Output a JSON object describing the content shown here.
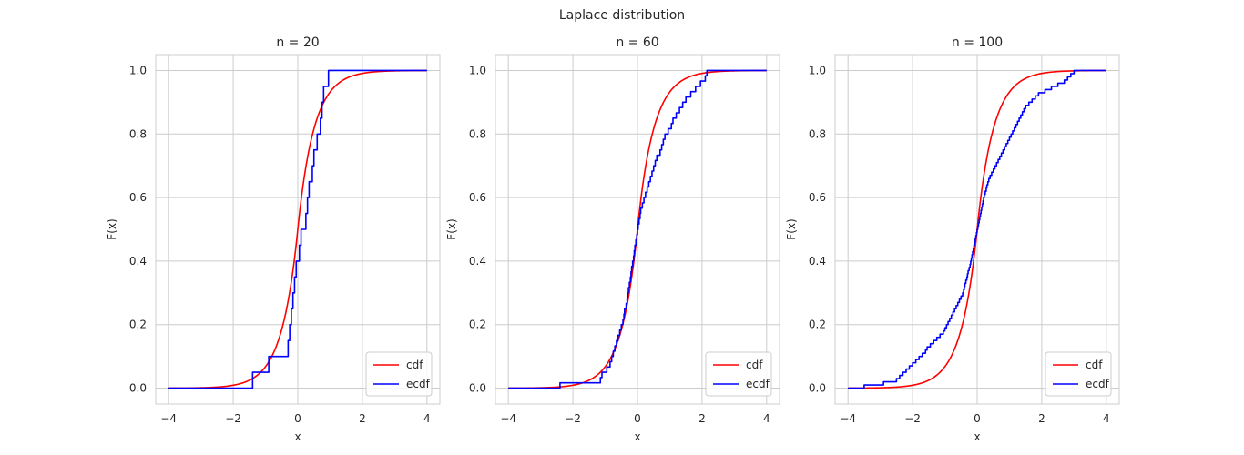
{
  "figure": {
    "title": "Laplace distribution"
  },
  "chart_data": [
    {
      "type": "line",
      "title": "n = 20",
      "xlabel": "x",
      "ylabel": "F(x)",
      "xlim": [
        -4.4,
        4.4
      ],
      "ylim": [
        -0.05,
        1.05
      ],
      "xticks": [
        -4,
        -2,
        0,
        2,
        4
      ],
      "xtick_labels": [
        "−4",
        "−2",
        "0",
        "2",
        "4"
      ],
      "yticks": [
        0.0,
        0.2,
        0.4,
        0.6,
        0.8,
        1.0
      ],
      "ytick_labels": [
        "0.0",
        "0.2",
        "0.4",
        "0.6",
        "0.8",
        "1.0"
      ],
      "grid": true,
      "legend": {
        "position": "lower-right",
        "entries": [
          "cdf",
          "ecdf"
        ]
      },
      "series": [
        {
          "name": "cdf",
          "color": "#ff0000",
          "kind": "laplace_cdf",
          "loc": 0,
          "scale": 0.5,
          "x_range": [
            -4,
            4
          ]
        },
        {
          "name": "ecdf",
          "color": "#0000ff",
          "kind": "ecdf",
          "x_range": [
            -4,
            4
          ],
          "samples": [
            -1.4,
            -0.9,
            -0.3,
            -0.25,
            -0.2,
            -0.15,
            -0.1,
            -0.05,
            0.05,
            0.1,
            0.25,
            0.3,
            0.35,
            0.45,
            0.5,
            0.6,
            0.7,
            0.75,
            0.8,
            0.95
          ]
        }
      ]
    },
    {
      "type": "line",
      "title": "n = 60",
      "xlabel": "x",
      "ylabel": "F(x)",
      "xlim": [
        -4.4,
        4.4
      ],
      "ylim": [
        -0.05,
        1.05
      ],
      "xticks": [
        -4,
        -2,
        0,
        2,
        4
      ],
      "xtick_labels": [
        "−4",
        "−2",
        "0",
        "2",
        "4"
      ],
      "yticks": [
        0.0,
        0.2,
        0.4,
        0.6,
        0.8,
        1.0
      ],
      "ytick_labels": [
        "0.0",
        "0.2",
        "0.4",
        "0.6",
        "0.8",
        "1.0"
      ],
      "grid": true,
      "legend": {
        "position": "lower-right",
        "entries": [
          "cdf",
          "ecdf"
        ]
      },
      "series": [
        {
          "name": "cdf",
          "color": "#ff0000",
          "kind": "laplace_cdf",
          "loc": 0,
          "scale": 0.5,
          "x_range": [
            -4,
            4
          ]
        },
        {
          "name": "ecdf",
          "color": "#0000ff",
          "kind": "ecdf",
          "x_range": [
            -4,
            4
          ],
          "samples": [
            -2.4,
            -1.15,
            -1.1,
            -0.95,
            -0.85,
            -0.8,
            -0.75,
            -0.7,
            -0.65,
            -0.6,
            -0.55,
            -0.5,
            -0.45,
            -0.42,
            -0.4,
            -0.35,
            -0.32,
            -0.3,
            -0.28,
            -0.25,
            -0.22,
            -0.2,
            -0.18,
            -0.15,
            -0.12,
            -0.1,
            -0.08,
            -0.05,
            -0.02,
            0.0,
            0.02,
            0.05,
            0.08,
            0.1,
            0.15,
            0.2,
            0.25,
            0.3,
            0.35,
            0.4,
            0.45,
            0.5,
            0.55,
            0.6,
            0.7,
            0.75,
            0.8,
            0.85,
            0.95,
            1.05,
            1.1,
            1.2,
            1.3,
            1.4,
            1.5,
            1.65,
            1.8,
            1.95,
            2.1,
            2.15
          ]
        }
      ]
    },
    {
      "type": "line",
      "title": "n = 100",
      "xlabel": "x",
      "ylabel": "F(x)",
      "xlim": [
        -4.4,
        4.4
      ],
      "ylim": [
        -0.05,
        1.05
      ],
      "xticks": [
        -4,
        -2,
        0,
        2,
        4
      ],
      "xtick_labels": [
        "−4",
        "−2",
        "0",
        "2",
        "4"
      ],
      "yticks": [
        0.0,
        0.2,
        0.4,
        0.6,
        0.8,
        1.0
      ],
      "ytick_labels": [
        "0.0",
        "0.2",
        "0.4",
        "0.6",
        "0.8",
        "1.0"
      ],
      "grid": true,
      "legend": {
        "position": "lower-right",
        "entries": [
          "cdf",
          "ecdf"
        ]
      },
      "series": [
        {
          "name": "cdf",
          "color": "#ff0000",
          "kind": "laplace_cdf",
          "loc": 0,
          "scale": 0.5,
          "x_range": [
            -4,
            4
          ]
        },
        {
          "name": "ecdf",
          "color": "#0000ff",
          "kind": "ecdf",
          "x_range": [
            -4,
            4
          ],
          "samples": [
            -3.5,
            -2.9,
            -2.5,
            -2.4,
            -2.3,
            -2.2,
            -2.1,
            -2.0,
            -1.9,
            -1.8,
            -1.7,
            -1.6,
            -1.55,
            -1.45,
            -1.35,
            -1.25,
            -1.15,
            -1.05,
            -1.0,
            -0.95,
            -0.9,
            -0.85,
            -0.8,
            -0.75,
            -0.7,
            -0.65,
            -0.6,
            -0.55,
            -0.5,
            -0.45,
            -0.42,
            -0.4,
            -0.38,
            -0.35,
            -0.32,
            -0.3,
            -0.28,
            -0.25,
            -0.22,
            -0.2,
            -0.18,
            -0.16,
            -0.14,
            -0.12,
            -0.1,
            -0.08,
            -0.06,
            -0.04,
            -0.02,
            0.0,
            0.02,
            0.04,
            0.06,
            0.08,
            0.1,
            0.12,
            0.14,
            0.16,
            0.18,
            0.2,
            0.22,
            0.25,
            0.28,
            0.3,
            0.33,
            0.36,
            0.4,
            0.45,
            0.5,
            0.55,
            0.6,
            0.65,
            0.7,
            0.75,
            0.8,
            0.85,
            0.9,
            0.95,
            1.0,
            1.05,
            1.1,
            1.15,
            1.2,
            1.25,
            1.3,
            1.35,
            1.4,
            1.45,
            1.5,
            1.6,
            1.7,
            1.8,
            1.9,
            2.1,
            2.3,
            2.5,
            2.7,
            2.8,
            2.9,
            3.0
          ]
        }
      ]
    }
  ]
}
